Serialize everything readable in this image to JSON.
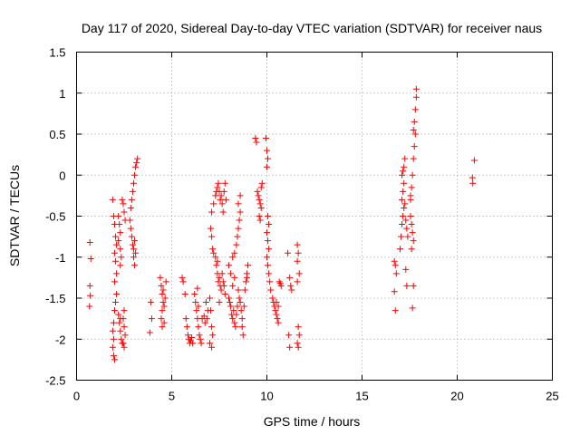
{
  "chart_data": {
    "type": "scatter",
    "title": "Day 117 of 2020, Sidereal Day-to-day VTEC variation (SDTVAR) for receiver naus",
    "xlabel": "GPS time / hours",
    "ylabel": "SDTVAR / TECUs",
    "xlim": [
      0,
      25
    ],
    "ylim": [
      -2.5,
      1.5
    ],
    "xticks": [
      0,
      5,
      10,
      15,
      20,
      25
    ],
    "yticks": [
      -2.5,
      -2,
      -1.5,
      -1,
      -0.5,
      0,
      0.5,
      1,
      1.5
    ],
    "xtick_labels": [
      "0",
      "5",
      "10",
      "15",
      "20",
      "25"
    ],
    "ytick_labels": [
      "-2.5",
      "-2",
      "-1.5",
      "-1",
      "-0.5",
      "0",
      "0.5",
      "1",
      "1.5"
    ],
    "grid": true,
    "marker": "+",
    "color": "#ff0000",
    "series": [
      {
        "name": "SDTVAR",
        "points": [
          [
            0.7,
            -0.82
          ],
          [
            0.75,
            -1.02
          ],
          [
            0.7,
            -1.35
          ],
          [
            0.72,
            -1.47
          ],
          [
            0.68,
            -1.6
          ],
          [
            1.9,
            -0.3
          ],
          [
            1.95,
            -0.5
          ],
          [
            2.0,
            -0.6
          ],
          [
            2.05,
            -0.75
          ],
          [
            2.1,
            -0.85
          ],
          [
            2.0,
            -0.95
          ],
          [
            2.05,
            -1.05
          ],
          [
            2.1,
            -1.2
          ],
          [
            2.0,
            -1.3
          ],
          [
            2.1,
            -1.45
          ],
          [
            2.05,
            -1.55
          ],
          [
            2.0,
            -1.65
          ],
          [
            1.95,
            -1.8
          ],
          [
            1.9,
            -1.9
          ],
          [
            1.95,
            -2.0
          ],
          [
            1.9,
            -2.1
          ],
          [
            1.95,
            -2.2
          ],
          [
            2.0,
            -2.25
          ],
          [
            2.2,
            -0.5
          ],
          [
            2.25,
            -0.6
          ],
          [
            2.3,
            -0.7
          ],
          [
            2.2,
            -0.8
          ],
          [
            2.3,
            -0.9
          ],
          [
            2.35,
            -1.0
          ],
          [
            2.3,
            -1.1
          ],
          [
            2.2,
            -1.7
          ],
          [
            2.25,
            -1.8
          ],
          [
            2.3,
            -1.9
          ],
          [
            2.35,
            -2.0
          ],
          [
            2.4,
            -2.05
          ],
          [
            2.3,
            -1.75
          ],
          [
            2.4,
            -0.3
          ],
          [
            2.45,
            -0.35
          ],
          [
            2.5,
            -0.45
          ],
          [
            2.55,
            -0.55
          ],
          [
            2.5,
            -1.65
          ],
          [
            2.45,
            -1.75
          ],
          [
            2.5,
            -1.85
          ],
          [
            2.55,
            -1.95
          ],
          [
            2.45,
            -2.05
          ],
          [
            2.5,
            -2.1
          ],
          [
            2.9,
            -0.75
          ],
          [
            2.95,
            -0.85
          ],
          [
            3.0,
            -0.9
          ],
          [
            3.05,
            -0.8
          ],
          [
            3.1,
            -0.95
          ],
          [
            3.0,
            -1.0
          ],
          [
            3.05,
            -1.1
          ],
          [
            2.85,
            -0.4
          ],
          [
            2.9,
            -0.3
          ],
          [
            2.95,
            -0.2
          ],
          [
            3.0,
            -0.1
          ],
          [
            3.05,
            0.0
          ],
          [
            3.1,
            0.1
          ],
          [
            3.15,
            0.15
          ],
          [
            3.2,
            0.2
          ],
          [
            2.8,
            -0.55
          ],
          [
            2.85,
            -0.65
          ],
          [
            3.9,
            -1.55
          ],
          [
            3.95,
            -1.75
          ],
          [
            3.85,
            -1.92
          ],
          [
            4.4,
            -1.25
          ],
          [
            4.45,
            -1.35
          ],
          [
            4.5,
            -1.45
          ],
          [
            4.55,
            -1.55
          ],
          [
            4.5,
            -1.65
          ],
          [
            4.45,
            -1.75
          ],
          [
            4.6,
            -1.8
          ],
          [
            4.55,
            -1.4
          ],
          [
            4.65,
            -1.5
          ],
          [
            4.7,
            -1.3
          ],
          [
            4.6,
            -1.6
          ],
          [
            4.5,
            -1.85
          ],
          [
            5.55,
            -1.25
          ],
          [
            5.6,
            -1.3
          ],
          [
            5.7,
            -1.45
          ],
          [
            5.75,
            -1.75
          ],
          [
            5.8,
            -1.85
          ],
          [
            5.85,
            -1.95
          ],
          [
            5.9,
            -2.0
          ],
          [
            5.95,
            -2.05
          ],
          [
            6.0,
            -2.02
          ],
          [
            6.05,
            -1.98
          ],
          [
            6.1,
            -2.05
          ],
          [
            6.2,
            -1.45
          ],
          [
            6.25,
            -1.55
          ],
          [
            6.3,
            -1.65
          ],
          [
            6.35,
            -1.75
          ],
          [
            6.4,
            -1.85
          ],
          [
            6.45,
            -1.95
          ],
          [
            6.5,
            -2.0
          ],
          [
            6.55,
            -2.05
          ],
          [
            6.35,
            -1.38
          ],
          [
            6.4,
            -1.6
          ],
          [
            6.6,
            -1.75
          ],
          [
            6.7,
            -1.72
          ],
          [
            6.75,
            -1.8
          ],
          [
            6.85,
            -1.75
          ],
          [
            6.9,
            -1.65
          ],
          [
            6.8,
            -1.55
          ],
          [
            7.0,
            -1.5
          ],
          [
            7.05,
            -1.65
          ],
          [
            7.1,
            -1.85
          ],
          [
            7.15,
            -1.95
          ],
          [
            7.0,
            -2.05
          ],
          [
            7.1,
            -2.1
          ],
          [
            7.05,
            -0.65
          ],
          [
            7.1,
            -0.75
          ],
          [
            7.15,
            -0.9
          ],
          [
            7.2,
            -0.95
          ],
          [
            7.1,
            -0.45
          ],
          [
            7.2,
            -0.35
          ],
          [
            7.3,
            -0.25
          ],
          [
            7.35,
            -0.2
          ],
          [
            7.4,
            -0.15
          ],
          [
            7.45,
            -0.1
          ],
          [
            7.5,
            -0.2
          ],
          [
            7.55,
            -0.3
          ],
          [
            7.6,
            -0.25
          ],
          [
            7.65,
            -0.35
          ],
          [
            7.7,
            -0.45
          ],
          [
            7.75,
            -0.2
          ],
          [
            7.8,
            -0.1
          ],
          [
            7.85,
            -0.3
          ],
          [
            7.3,
            -1.0
          ],
          [
            7.35,
            -1.1
          ],
          [
            7.4,
            -1.2
          ],
          [
            7.45,
            -1.3
          ],
          [
            7.5,
            -1.25
          ],
          [
            7.55,
            -1.35
          ],
          [
            7.6,
            -1.4
          ],
          [
            7.65,
            -1.2
          ],
          [
            7.7,
            -1.3
          ],
          [
            7.75,
            -1.35
          ],
          [
            7.8,
            -1.45
          ],
          [
            7.5,
            -1.55
          ],
          [
            7.4,
            -1.05
          ],
          [
            8.0,
            -1.5
          ],
          [
            8.05,
            -1.55
          ],
          [
            8.1,
            -1.6
          ],
          [
            8.15,
            -1.7
          ],
          [
            8.2,
            -1.75
          ],
          [
            8.25,
            -1.65
          ],
          [
            8.3,
            -1.8
          ],
          [
            8.35,
            -1.85
          ],
          [
            8.4,
            -1.7
          ],
          [
            8.45,
            -1.6
          ],
          [
            8.0,
            -1.1
          ],
          [
            8.1,
            -1.2
          ],
          [
            8.2,
            -1.0
          ],
          [
            8.3,
            -0.95
          ],
          [
            8.4,
            -0.85
          ],
          [
            8.45,
            -0.75
          ],
          [
            8.5,
            -0.65
          ],
          [
            8.55,
            -0.55
          ],
          [
            8.6,
            -0.45
          ],
          [
            8.5,
            -0.35
          ],
          [
            8.6,
            -0.25
          ],
          [
            8.2,
            -1.35
          ],
          [
            8.3,
            -1.25
          ],
          [
            8.5,
            -1.4
          ],
          [
            8.55,
            -1.5
          ],
          [
            8.6,
            -1.55
          ],
          [
            8.65,
            -1.65
          ],
          [
            8.7,
            -1.75
          ],
          [
            8.7,
            -1.85
          ],
          [
            8.75,
            -1.95
          ],
          [
            8.8,
            -1.6
          ],
          [
            8.85,
            -1.4
          ],
          [
            8.9,
            -1.3
          ],
          [
            8.95,
            -1.2
          ],
          [
            9.0,
            -1.1
          ],
          [
            8.95,
            -1.25
          ],
          [
            9.4,
            0.45
          ],
          [
            9.45,
            0.4
          ],
          [
            9.5,
            -0.2
          ],
          [
            9.55,
            -0.25
          ],
          [
            9.6,
            -0.3
          ],
          [
            9.65,
            -0.35
          ],
          [
            9.7,
            -0.4
          ],
          [
            9.6,
            -0.5
          ],
          [
            9.65,
            -0.55
          ],
          [
            9.7,
            -0.15
          ],
          [
            9.75,
            -0.1
          ],
          [
            9.95,
            0.45
          ],
          [
            10.0,
            0.3
          ],
          [
            10.05,
            0.2
          ],
          [
            10.0,
            0.1
          ],
          [
            10.05,
            -0.5
          ],
          [
            10.1,
            -0.6
          ],
          [
            10.0,
            -0.7
          ],
          [
            10.05,
            -0.8
          ],
          [
            10.1,
            -0.9
          ],
          [
            10.0,
            -1.0
          ],
          [
            10.05,
            -1.1
          ],
          [
            10.1,
            -1.2
          ],
          [
            10.15,
            -1.3
          ],
          [
            10.2,
            -1.4
          ],
          [
            10.3,
            -1.5
          ],
          [
            10.35,
            -1.55
          ],
          [
            10.4,
            -1.6
          ],
          [
            10.45,
            -1.65
          ],
          [
            10.5,
            -1.7
          ],
          [
            10.55,
            -1.75
          ],
          [
            10.6,
            -1.8
          ],
          [
            10.5,
            -1.55
          ],
          [
            10.6,
            -1.6
          ],
          [
            10.65,
            -1.3
          ],
          [
            10.7,
            -1.32
          ],
          [
            10.75,
            -1.35
          ],
          [
            11.2,
            -1.25
          ],
          [
            11.25,
            -1.35
          ],
          [
            11.3,
            -1.4
          ],
          [
            11.15,
            -1.95
          ],
          [
            11.2,
            -2.1
          ],
          [
            11.1,
            -0.95
          ],
          [
            11.6,
            -0.85
          ],
          [
            11.65,
            -0.95
          ],
          [
            11.6,
            -1.05
          ],
          [
            11.7,
            -1.2
          ],
          [
            11.6,
            -1.3
          ],
          [
            11.65,
            -1.85
          ],
          [
            11.7,
            -1.95
          ],
          [
            11.6,
            -2.05
          ],
          [
            11.65,
            -2.1
          ],
          [
            16.7,
            -1.05
          ],
          [
            16.75,
            -1.1
          ],
          [
            16.8,
            -1.2
          ],
          [
            16.7,
            -1.42
          ],
          [
            16.75,
            -1.65
          ],
          [
            17.0,
            -0.9
          ],
          [
            17.05,
            -0.75
          ],
          [
            17.1,
            -0.6
          ],
          [
            17.15,
            -0.5
          ],
          [
            17.2,
            -0.4
          ],
          [
            17.1,
            -0.3
          ],
          [
            17.15,
            -0.2
          ],
          [
            17.2,
            -0.1
          ],
          [
            17.1,
            0.0
          ],
          [
            17.15,
            0.05
          ],
          [
            17.2,
            0.1
          ],
          [
            17.25,
            0.2
          ],
          [
            17.3,
            -0.55
          ],
          [
            17.35,
            -0.65
          ],
          [
            17.4,
            -0.75
          ],
          [
            17.25,
            -0.35
          ],
          [
            17.3,
            -1.15
          ],
          [
            17.35,
            -1.35
          ],
          [
            17.55,
            -0.5
          ],
          [
            17.6,
            -0.6
          ],
          [
            17.65,
            -0.7
          ],
          [
            17.7,
            -0.8
          ],
          [
            17.55,
            -0.3
          ],
          [
            17.6,
            -0.15
          ],
          [
            17.65,
            0.0
          ],
          [
            17.7,
            0.2
          ],
          [
            17.75,
            0.35
          ],
          [
            17.8,
            0.5
          ],
          [
            17.7,
            0.55
          ],
          [
            17.75,
            0.65
          ],
          [
            17.8,
            0.8
          ],
          [
            17.85,
            0.95
          ],
          [
            17.85,
            1.05
          ],
          [
            17.7,
            -1.35
          ],
          [
            17.65,
            -1.62
          ],
          [
            17.6,
            -0.9
          ],
          [
            17.55,
            -0.25
          ],
          [
            20.8,
            -0.03
          ],
          [
            20.82,
            -0.1
          ],
          [
            20.9,
            0.18
          ]
        ]
      }
    ]
  }
}
